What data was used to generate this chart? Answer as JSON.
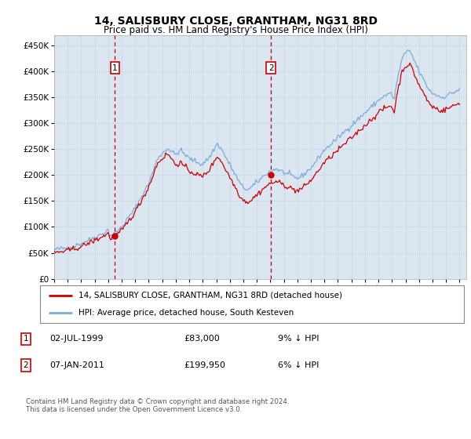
{
  "title": "14, SALISBURY CLOSE, GRANTHAM, NG31 8RD",
  "subtitle": "Price paid vs. HM Land Registry's House Price Index (HPI)",
  "ytick_vals": [
    0,
    50000,
    100000,
    150000,
    200000,
    250000,
    300000,
    350000,
    400000,
    450000
  ],
  "ylim": [
    0,
    470000
  ],
  "xlim_start": 1995.0,
  "xlim_end": 2025.5,
  "hpi_color": "#7aadd4",
  "price_color": "#cc0000",
  "grid_color": "#c8d8ea",
  "bg_color": "#dce6f1",
  "transaction1_x": 1999.5,
  "transaction1_y": 83000,
  "transaction2_x": 2011.04,
  "transaction2_y": 199950,
  "legend_line1": "14, SALISBURY CLOSE, GRANTHAM, NG31 8RD (detached house)",
  "legend_line2": "HPI: Average price, detached house, South Kesteven",
  "footer": "Contains HM Land Registry data © Crown copyright and database right 2024.\nThis data is licensed under the Open Government Licence v3.0.",
  "hpi_data_x": [
    1995.0,
    1995.083,
    1995.167,
    1995.25,
    1995.333,
    1995.417,
    1995.5,
    1995.583,
    1995.667,
    1995.75,
    1995.833,
    1995.917,
    1996.0,
    1996.083,
    1996.167,
    1996.25,
    1996.333,
    1996.417,
    1996.5,
    1996.583,
    1996.667,
    1996.75,
    1996.833,
    1996.917,
    1997.0,
    1997.083,
    1997.167,
    1997.25,
    1997.333,
    1997.417,
    1997.5,
    1997.583,
    1997.667,
    1997.75,
    1997.833,
    1997.917,
    1998.0,
    1998.083,
    1998.167,
    1998.25,
    1998.333,
    1998.417,
    1998.5,
    1998.583,
    1998.667,
    1998.75,
    1998.833,
    1998.917,
    1999.0,
    1999.083,
    1999.167,
    1999.25,
    1999.333,
    1999.417,
    1999.5,
    1999.583,
    1999.667,
    1999.75,
    1999.833,
    1999.917,
    2000.0,
    2000.083,
    2000.167,
    2000.25,
    2000.333,
    2000.417,
    2000.5,
    2000.583,
    2000.667,
    2000.75,
    2000.833,
    2000.917,
    2001.0,
    2001.083,
    2001.167,
    2001.25,
    2001.333,
    2001.417,
    2001.5,
    2001.583,
    2001.667,
    2001.75,
    2001.833,
    2001.917,
    2002.0,
    2002.083,
    2002.167,
    2002.25,
    2002.333,
    2002.417,
    2002.5,
    2002.583,
    2002.667,
    2002.75,
    2002.833,
    2002.917,
    2003.0,
    2003.083,
    2003.167,
    2003.25,
    2003.333,
    2003.417,
    2003.5,
    2003.583,
    2003.667,
    2003.75,
    2003.833,
    2003.917,
    2004.0,
    2004.083,
    2004.167,
    2004.25,
    2004.333,
    2004.417,
    2004.5,
    2004.583,
    2004.667,
    2004.75,
    2004.833,
    2004.917,
    2005.0,
    2005.083,
    2005.167,
    2005.25,
    2005.333,
    2005.417,
    2005.5,
    2005.583,
    2005.667,
    2005.75,
    2005.833,
    2005.917,
    2006.0,
    2006.083,
    2006.167,
    2006.25,
    2006.333,
    2006.417,
    2006.5,
    2006.583,
    2006.667,
    2006.75,
    2006.833,
    2006.917,
    2007.0,
    2007.083,
    2007.167,
    2007.25,
    2007.333,
    2007.417,
    2007.5,
    2007.583,
    2007.667,
    2007.75,
    2007.833,
    2007.917,
    2008.0,
    2008.083,
    2008.167,
    2008.25,
    2008.333,
    2008.417,
    2008.5,
    2008.583,
    2008.667,
    2008.75,
    2008.833,
    2008.917,
    2009.0,
    2009.083,
    2009.167,
    2009.25,
    2009.333,
    2009.417,
    2009.5,
    2009.583,
    2009.667,
    2009.75,
    2009.833,
    2009.917,
    2010.0,
    2010.083,
    2010.167,
    2010.25,
    2010.333,
    2010.417,
    2010.5,
    2010.583,
    2010.667,
    2010.75,
    2010.833,
    2010.917,
    2011.0,
    2011.083,
    2011.167,
    2011.25,
    2011.333,
    2011.417,
    2011.5,
    2011.583,
    2011.667,
    2011.75,
    2011.833,
    2011.917,
    2012.0,
    2012.083,
    2012.167,
    2012.25,
    2012.333,
    2012.417,
    2012.5,
    2012.583,
    2012.667,
    2012.75,
    2012.833,
    2012.917,
    2013.0,
    2013.083,
    2013.167,
    2013.25,
    2013.333,
    2013.417,
    2013.5,
    2013.583,
    2013.667,
    2013.75,
    2013.833,
    2013.917,
    2014.0,
    2014.083,
    2014.167,
    2014.25,
    2014.333,
    2014.417,
    2014.5,
    2014.583,
    2014.667,
    2014.75,
    2014.833,
    2014.917,
    2015.0,
    2015.083,
    2015.167,
    2015.25,
    2015.333,
    2015.417,
    2015.5,
    2015.583,
    2015.667,
    2015.75,
    2015.833,
    2015.917,
    2016.0,
    2016.083,
    2016.167,
    2016.25,
    2016.333,
    2016.417,
    2016.5,
    2016.583,
    2016.667,
    2016.75,
    2016.833,
    2016.917,
    2017.0,
    2017.083,
    2017.167,
    2017.25,
    2017.333,
    2017.417,
    2017.5,
    2017.583,
    2017.667,
    2017.75,
    2017.833,
    2017.917,
    2018.0,
    2018.083,
    2018.167,
    2018.25,
    2018.333,
    2018.417,
    2018.5,
    2018.583,
    2018.667,
    2018.75,
    2018.833,
    2018.917,
    2019.0,
    2019.083,
    2019.167,
    2019.25,
    2019.333,
    2019.417,
    2019.5,
    2019.583,
    2019.667,
    2019.75,
    2019.833,
    2019.917,
    2020.0,
    2020.083,
    2020.167,
    2020.25,
    2020.333,
    2020.417,
    2020.5,
    2020.583,
    2020.667,
    2020.75,
    2020.833,
    2020.917,
    2021.0,
    2021.083,
    2021.167,
    2021.25,
    2021.333,
    2021.417,
    2021.5,
    2021.583,
    2021.667,
    2021.75,
    2021.833,
    2021.917,
    2022.0,
    2022.083,
    2022.167,
    2022.25,
    2022.333,
    2022.417,
    2022.5,
    2022.583,
    2022.667,
    2022.75,
    2022.833,
    2022.917,
    2023.0,
    2023.083,
    2023.167,
    2023.25,
    2023.333,
    2023.417,
    2023.5,
    2023.583,
    2023.667,
    2023.75,
    2023.833,
    2023.917,
    2024.0,
    2024.083,
    2024.167,
    2024.25,
    2024.333,
    2024.417,
    2024.5,
    2024.583,
    2024.667,
    2024.75,
    2024.833,
    2024.917,
    2025.0
  ],
  "hpi_data_y": [
    56000,
    56500,
    57000,
    57200,
    57500,
    57800,
    58000,
    58200,
    58500,
    59000,
    59500,
    60000,
    60500,
    61000,
    61500,
    62000,
    62500,
    63000,
    63800,
    64500,
    65000,
    65800,
    66500,
    67200,
    68000,
    69000,
    70000,
    71000,
    72000,
    73000,
    74200,
    75000,
    76000,
    77000,
    78000,
    79000,
    80000,
    81000,
    82000,
    83000,
    84000,
    85000,
    86000,
    87500,
    89000,
    90000,
    91500,
    93000,
    94000,
    85000,
    83000,
    85000,
    86000,
    87000,
    88000,
    90000,
    92000,
    94000,
    96000,
    98000,
    100000,
    103000,
    106000,
    109000,
    112000,
    115000,
    118000,
    121000,
    124000,
    127000,
    130000,
    133000,
    136000,
    140000,
    144000,
    148000,
    152000,
    156000,
    160000,
    164000,
    168000,
    172000,
    176000,
    180000,
    185000,
    190000,
    196000,
    202000,
    208000,
    214000,
    220000,
    226000,
    232000,
    236000,
    238000,
    240000,
    242000,
    244000,
    246000,
    248000,
    250000,
    252000,
    250000,
    248000,
    246000,
    244000,
    242000,
    240000,
    240000,
    242000,
    244000,
    246000,
    248000,
    246000,
    244000,
    242000,
    240000,
    238000,
    236000,
    234000,
    232000,
    231000,
    230000,
    229000,
    228000,
    227000,
    226000,
    225000,
    224000,
    223000,
    222000,
    221000,
    222000,
    224000,
    226000,
    228000,
    230000,
    232000,
    235000,
    238000,
    242000,
    246000,
    250000,
    254000,
    258000,
    260000,
    258000,
    255000,
    252000,
    248000,
    244000,
    240000,
    236000,
    232000,
    228000,
    224000,
    220000,
    216000,
    212000,
    208000,
    204000,
    200000,
    196000,
    192000,
    188000,
    184000,
    180000,
    178000,
    176000,
    175000,
    174000,
    173000,
    172000,
    173000,
    174000,
    176000,
    178000,
    180000,
    182000,
    184000,
    186000,
    188000,
    190000,
    192000,
    194000,
    196000,
    198000,
    200000,
    202000,
    204000,
    205000,
    206000,
    207000,
    208000,
    209000,
    210000,
    211000,
    212000,
    211000,
    210000,
    209000,
    208000,
    207000,
    206000,
    205000,
    204000,
    203000,
    202000,
    201000,
    200000,
    199000,
    198000,
    197000,
    196000,
    195000,
    194000,
    194000,
    195000,
    196000,
    197000,
    198000,
    200000,
    202000,
    204000,
    206000,
    208000,
    210000,
    212000,
    214000,
    216000,
    219000,
    222000,
    225000,
    228000,
    231000,
    234000,
    237000,
    240000,
    243000,
    246000,
    248000,
    250000,
    252000,
    254000,
    256000,
    258000,
    260000,
    262000,
    264000,
    266000,
    268000,
    270000,
    272000,
    274000,
    276000,
    278000,
    280000,
    282000,
    284000,
    286000,
    288000,
    290000,
    292000,
    294000,
    296000,
    298000,
    300000,
    302000,
    304000,
    306000,
    308000,
    310000,
    312000,
    314000,
    316000,
    318000,
    320000,
    322000,
    324000,
    326000,
    328000,
    330000,
    332000,
    334000,
    336000,
    338000,
    340000,
    342000,
    344000,
    346000,
    348000,
    350000,
    351000,
    352000,
    353000,
    354000,
    355000,
    356000,
    357000,
    358000,
    355000,
    350000,
    345000,
    360000,
    375000,
    385000,
    395000,
    405000,
    415000,
    425000,
    430000,
    432000,
    434000,
    436000,
    438000,
    440000,
    438000,
    435000,
    430000,
    425000,
    420000,
    415000,
    410000,
    405000,
    400000,
    396000,
    392000,
    388000,
    384000,
    380000,
    376000,
    372000,
    368000,
    365000,
    362000,
    360000,
    358000,
    357000,
    356000,
    355000,
    354000,
    353000,
    352000,
    351000,
    350000,
    350000,
    351000,
    352000,
    353000,
    354000,
    355000,
    356000,
    357000,
    358000,
    359000,
    360000,
    361000,
    362000,
    363000,
    364000,
    366000
  ],
  "price_data_y": [
    50000,
    50500,
    51000,
    51200,
    51500,
    51800,
    52000,
    52200,
    52500,
    53000,
    53500,
    54000,
    54500,
    55000,
    55500,
    56000,
    56500,
    57000,
    57800,
    58500,
    59000,
    59800,
    60500,
    61200,
    62000,
    63000,
    64000,
    65000,
    66000,
    67000,
    68200,
    69000,
    70000,
    71000,
    72000,
    73000,
    74000,
    75000,
    76000,
    77000,
    78000,
    79000,
    80000,
    81500,
    83000,
    84000,
    85500,
    87000,
    88000,
    80000,
    78000,
    80000,
    81000,
    82000,
    83000,
    84000,
    85000,
    87000,
    89000,
    91000,
    93000,
    96000,
    99000,
    102000,
    105000,
    108000,
    111000,
    114000,
    117000,
    120000,
    123000,
    126000,
    129000,
    133000,
    137000,
    141000,
    145000,
    149000,
    153000,
    157000,
    161000,
    165000,
    169000,
    173000,
    178000,
    183000,
    189000,
    195000,
    201000,
    207000,
    213000,
    218000,
    223000,
    226000,
    228000,
    230000,
    232000,
    234000,
    236000,
    238000,
    240000,
    241000,
    238000,
    235000,
    232000,
    229000,
    226000,
    223000,
    220000,
    221000,
    222000,
    223000,
    224000,
    222000,
    220000,
    218000,
    216000,
    214000,
    212000,
    210000,
    208000,
    207000,
    206000,
    205000,
    204000,
    203000,
    202000,
    201000,
    200000,
    199000,
    198000,
    197000,
    198000,
    200000,
    202000,
    204000,
    206000,
    208000,
    211000,
    214000,
    218000,
    222000,
    226000,
    230000,
    234000,
    236000,
    234000,
    231000,
    228000,
    224000,
    220000,
    216000,
    212000,
    208000,
    204000,
    200000,
    196000,
    192000,
    188000,
    184000,
    180000,
    176000,
    172000,
    168000,
    164000,
    160000,
    156000,
    154000,
    152000,
    151000,
    150000,
    149000,
    148000,
    149000,
    150000,
    152000,
    154000,
    156000,
    158000,
    160000,
    162000,
    164000,
    166000,
    168000,
    170000,
    172000,
    174000,
    176000,
    178000,
    180000,
    181000,
    182000,
    183000,
    184000,
    185000,
    186000,
    187000,
    188000,
    187000,
    186000,
    185000,
    184000,
    183000,
    182000,
    181000,
    180000,
    179000,
    178000,
    177000,
    176000,
    175000,
    174000,
    173000,
    172000,
    171000,
    170000,
    170000,
    171000,
    172000,
    173000,
    174000,
    176000,
    178000,
    180000,
    182000,
    184000,
    186000,
    188000,
    190000,
    192000,
    195000,
    198000,
    201000,
    204000,
    207000,
    210000,
    213000,
    216000,
    219000,
    222000,
    224000,
    226000,
    228000,
    230000,
    232000,
    234000,
    236000,
    238000,
    240000,
    242000,
    244000,
    246000,
    248000,
    250000,
    252000,
    254000,
    256000,
    258000,
    260000,
    262000,
    264000,
    266000,
    268000,
    270000,
    272000,
    274000,
    276000,
    278000,
    280000,
    282000,
    284000,
    286000,
    288000,
    290000,
    292000,
    294000,
    296000,
    298000,
    300000,
    302000,
    304000,
    306000,
    308000,
    310000,
    312000,
    314000,
    316000,
    318000,
    320000,
    322000,
    324000,
    326000,
    327000,
    328000,
    329000,
    330000,
    331000,
    332000,
    333000,
    334000,
    331000,
    326000,
    321000,
    336000,
    351000,
    361000,
    371000,
    381000,
    391000,
    400000,
    405000,
    407000,
    409000,
    411000,
    413000,
    414000,
    412000,
    409000,
    404000,
    399000,
    394000,
    389000,
    384000,
    379000,
    374000,
    370000,
    366000,
    362000,
    358000,
    354000,
    350000,
    346000,
    342000,
    339000,
    336000,
    334000,
    332000,
    331000,
    330000,
    329000,
    328000,
    327000,
    326000,
    325000,
    324000,
    324000,
    325000,
    326000,
    327000,
    328000,
    329000,
    330000,
    331000,
    332000,
    333000,
    334000,
    335000,
    336000,
    337000,
    338000,
    340000
  ]
}
